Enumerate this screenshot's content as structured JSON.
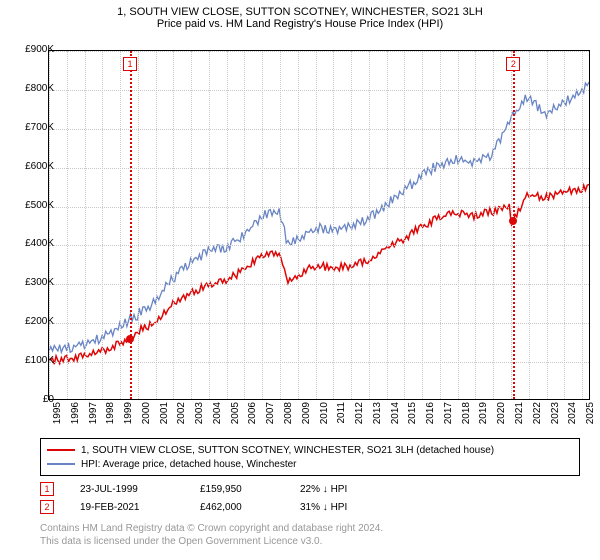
{
  "title": {
    "line1": "1, SOUTH VIEW CLOSE, SUTTON SCOTNEY, WINCHESTER, SO21 3LH",
    "line2": "Price paid vs. HM Land Registry's House Price Index (HPI)"
  },
  "chart": {
    "type": "line",
    "background_color": "#ffffff",
    "grid_color": "#c8c8c8",
    "border_color": "#000000",
    "xlim": [
      1995,
      2025.5
    ],
    "ylim": [
      0,
      900000
    ],
    "yticks": [
      0,
      100000,
      200000,
      300000,
      400000,
      500000,
      600000,
      700000,
      800000,
      900000
    ],
    "ytick_labels": [
      "£0",
      "£100K",
      "£200K",
      "£300K",
      "£400K",
      "£500K",
      "£600K",
      "£700K",
      "£800K",
      "£900K"
    ],
    "xticks": [
      1995,
      1996,
      1997,
      1998,
      1999,
      2000,
      2001,
      2002,
      2003,
      2004,
      2005,
      2006,
      2007,
      2008,
      2009,
      2010,
      2011,
      2012,
      2013,
      2014,
      2015,
      2016,
      2017,
      2018,
      2019,
      2020,
      2021,
      2022,
      2023,
      2024,
      2025
    ],
    "axis_font_size": 10,
    "series": [
      {
        "name": "property",
        "color": "#dd0606",
        "width": 1.5,
        "x": [
          1995,
          1996,
          1997,
          1998,
          1999,
          1999.56,
          2000,
          2001,
          2002,
          2003,
          2004,
          2005,
          2006,
          2007,
          2008,
          2008.5,
          2009,
          2010,
          2011,
          2012,
          2013,
          2014,
          2015,
          2016,
          2017,
          2018,
          2019,
          2020,
          2021,
          2021.13,
          2022,
          2023,
          2024,
          2025,
          2025.5
        ],
        "y": [
          105000,
          108000,
          118000,
          128000,
          150000,
          159950,
          182000,
          200000,
          250000,
          280000,
          300000,
          310000,
          340000,
          375000,
          385000,
          310000,
          320000,
          350000,
          345000,
          350000,
          360000,
          395000,
          420000,
          450000,
          475000,
          485000,
          480000,
          490000,
          505000,
          462000,
          535000,
          525000,
          540000,
          550000,
          555000
        ]
      },
      {
        "name": "hpi",
        "color": "#6884c4",
        "width": 1.3,
        "x": [
          1995,
          1996,
          1997,
          1998,
          1999,
          2000,
          2001,
          2002,
          2003,
          2004,
          2005,
          2006,
          2007,
          2008,
          2008.5,
          2009,
          2010,
          2011,
          2012,
          2013,
          2014,
          2015,
          2016,
          2017,
          2018,
          2019,
          2020,
          2021,
          2022,
          2023,
          2024,
          2025,
          2025.5
        ],
        "y": [
          135000,
          138000,
          148000,
          165000,
          195000,
          225000,
          260000,
          320000,
          360000,
          390000,
          400000,
          430000,
          480000,
          495000,
          405000,
          420000,
          450000,
          445000,
          455000,
          470000,
          510000,
          545000,
          580000,
          615000,
          625000,
          620000,
          640000,
          725000,
          790000,
          745000,
          770000,
          800000,
          820000
        ]
      }
    ],
    "markers": [
      {
        "num": "1",
        "x": 1999.56,
        "y": 159950,
        "color": "#dd0606"
      },
      {
        "num": "2",
        "x": 2021.13,
        "y": 462000,
        "color": "#dd0606"
      }
    ]
  },
  "legend": {
    "items": [
      {
        "color": "#dd0606",
        "label": "1, SOUTH VIEW CLOSE, SUTTON SCOTNEY, WINCHESTER, SO21 3LH (detached house)"
      },
      {
        "color": "#6884c4",
        "label": "HPI: Average price, detached house, Winchester"
      }
    ]
  },
  "sales": [
    {
      "num": "1",
      "color": "#dd0606",
      "date": "23-JUL-1999",
      "price": "£159,950",
      "pct": "22% ↓ HPI"
    },
    {
      "num": "2",
      "color": "#dd0606",
      "date": "19-FEB-2021",
      "price": "£462,000",
      "pct": "31% ↓ HPI"
    }
  ],
  "footer": {
    "line1": "Contains HM Land Registry data © Crown copyright and database right 2024.",
    "line2": "This data is licensed under the Open Government Licence v3.0."
  }
}
